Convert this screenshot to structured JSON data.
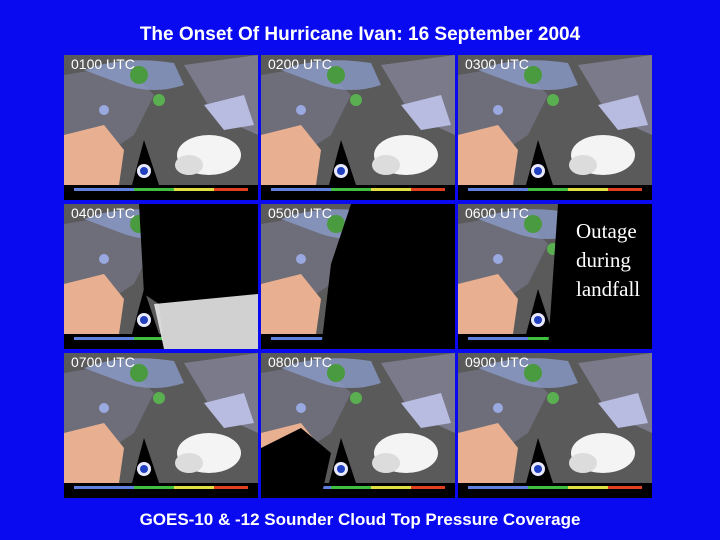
{
  "title": "The Onset Of Hurricane Ivan: 16 September 2004",
  "panels": [
    "0100 UTC",
    "0200 UTC",
    "0300 UTC",
    "0400 UTC",
    "0500 UTC",
    "0600 UTC",
    "0700 UTC",
    "0800 UTC",
    "0900 UTC"
  ],
  "note": "Outage during landfall",
  "footer": "GOES-10 & -12 Sounder Cloud Top Pressure Coverage"
}
